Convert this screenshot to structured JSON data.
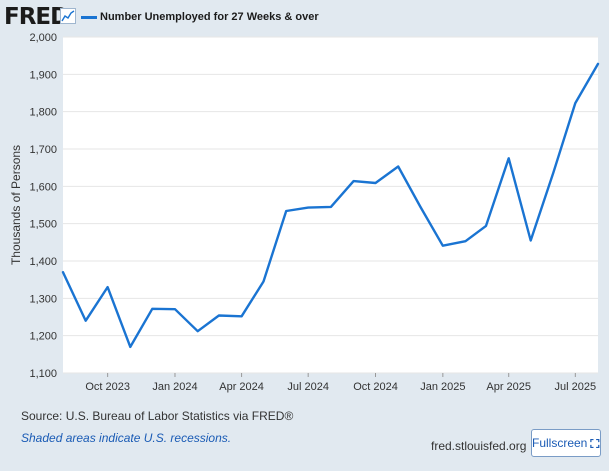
{
  "header": {
    "logo_text": "FRED",
    "logo_icon": "trend-line-icon",
    "legend_label": "Number Unemployed for 27 Weeks & over"
  },
  "footer": {
    "source": "Source: U.S. Bureau of Labor Statistics via FRED®",
    "note": "Shaded areas indicate U.S. recessions.",
    "url": "fred.stlouisfed.org",
    "fullscreen_label": "Fullscreen",
    "fullscreen_icon": "expand-corners-icon"
  },
  "colors": {
    "background": "#e1e9f0",
    "plot_background": "#ffffff",
    "series": "#1a74d2",
    "link": "#1a5bb5"
  },
  "chart_data": {
    "type": "line",
    "ylabel": "Thousands of Persons",
    "ylim": [
      1100,
      2000
    ],
    "yticks": [
      1100,
      1200,
      1300,
      1400,
      1500,
      1600,
      1700,
      1800,
      1900,
      2000
    ],
    "ytick_labels": [
      "1,100",
      "1,200",
      "1,300",
      "1,400",
      "1,500",
      "1,600",
      "1,700",
      "1,800",
      "1,900",
      "2,000"
    ],
    "xlim": [
      "2023-08-01",
      "2025-08-01"
    ],
    "xticks": [
      "2023-10-01",
      "2024-01-01",
      "2024-04-01",
      "2024-07-01",
      "2024-10-01",
      "2025-01-01",
      "2025-04-01",
      "2025-07-01"
    ],
    "xtick_labels": [
      "Oct 2023",
      "Jan 2024",
      "Apr 2024",
      "Jul 2024",
      "Oct 2024",
      "Jan 2025",
      "Apr 2025",
      "Jul 2025"
    ],
    "grid": "horizontal",
    "legend": "top-left",
    "series": [
      {
        "name": "Number Unemployed for 27 Weeks & over",
        "x": [
          "2023-08-01",
          "2023-09-01",
          "2023-10-01",
          "2023-11-01",
          "2023-12-01",
          "2024-01-01",
          "2024-02-01",
          "2024-03-01",
          "2024-04-01",
          "2024-05-01",
          "2024-06-01",
          "2024-07-01",
          "2024-08-01",
          "2024-09-01",
          "2024-10-01",
          "2024-11-01",
          "2024-12-01",
          "2025-01-01",
          "2025-02-01",
          "2025-03-01",
          "2025-04-01",
          "2025-05-01",
          "2025-06-01",
          "2025-07-01",
          "2025-08-01"
        ],
        "values": [
          1370,
          1240,
          1330,
          1170,
          1272,
          1271,
          1212,
          1254,
          1252,
          1345,
          1534,
          1543,
          1545,
          1614,
          1609,
          1653,
          1546,
          1441,
          1453,
          1494,
          1675,
          1455,
          1637,
          1823,
          1928
        ]
      }
    ]
  }
}
